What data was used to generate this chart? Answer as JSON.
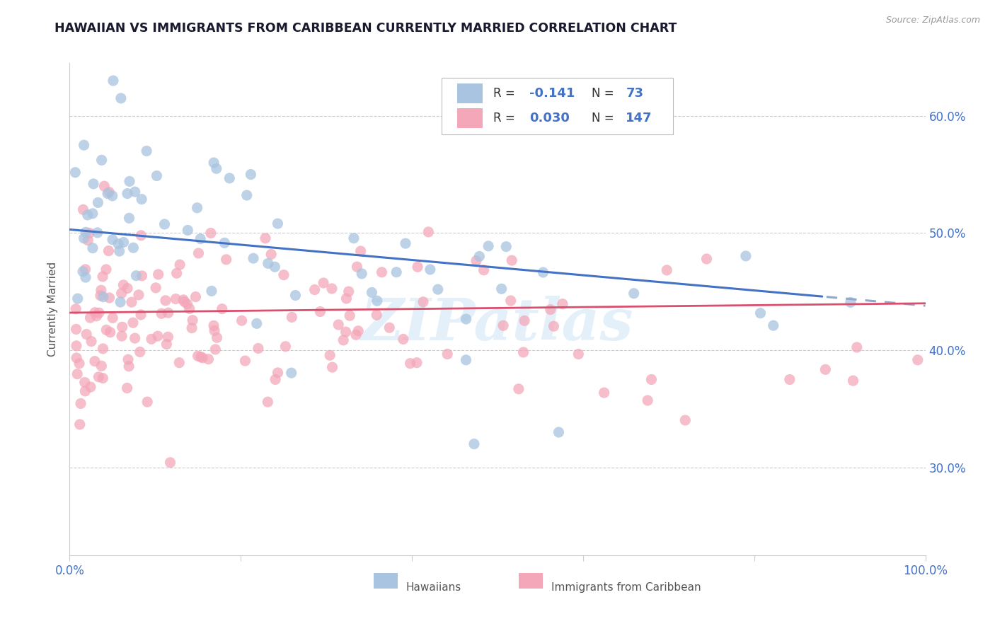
{
  "title": "HAWAIIAN VS IMMIGRANTS FROM CARIBBEAN CURRENTLY MARRIED CORRELATION CHART",
  "source": "Source: ZipAtlas.com",
  "ylabel": "Currently Married",
  "xlim": [
    0.0,
    1.0
  ],
  "ylim": [
    0.225,
    0.645
  ],
  "yticks": [
    0.3,
    0.4,
    0.5,
    0.6
  ],
  "ytick_labels": [
    "30.0%",
    "40.0%",
    "50.0%",
    "60.0%"
  ],
  "xtick_labels": [
    "0.0%",
    "",
    "",
    "",
    "",
    "100.0%"
  ],
  "hawaiian_color": "#a8c4e0",
  "caribbean_color": "#f4a7b9",
  "hawaiian_line_color": "#4472c4",
  "caribbean_line_color": "#d94f6e",
  "tick_color": "#4472c4",
  "r_hawaiian": "-0.141",
  "n_hawaiian": "73",
  "r_caribbean": "0.030",
  "n_caribbean": "147",
  "hawaiian_label": "Hawaiians",
  "caribbean_label": "Immigrants from Caribbean",
  "watermark": "ZIPatlas",
  "title_color": "#1a1a2e",
  "hawaiian_seed": 42,
  "caribbean_seed": 77
}
